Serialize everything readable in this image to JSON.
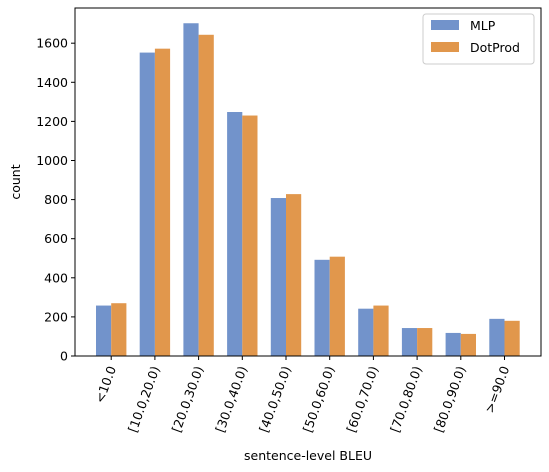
{
  "chart_data": {
    "type": "bar",
    "title": "",
    "xlabel": "sentence-level BLEU",
    "ylabel": "count",
    "categories": [
      "<10.0",
      "[10.0,20.0)",
      "[20.0,30.0)",
      "[30.0,40.0)",
      "[40.0,50.0)",
      "[50.0,60.0)",
      "[60.0,70.0)",
      "[70.0,80.0)",
      "[80.0,90.0)",
      ">=90.0"
    ],
    "series": [
      {
        "name": "MLP",
        "color": "#7293cb",
        "values": [
          258,
          1552,
          1702,
          1248,
          808,
          492,
          242,
          143,
          118,
          190
        ]
      },
      {
        "name": "DotProd",
        "color": "#e1974c",
        "values": [
          270,
          1572,
          1643,
          1230,
          828,
          508,
          258,
          143,
          113,
          180
        ]
      }
    ],
    "ylim": [
      0,
      1780
    ],
    "yticks": [
      0,
      200,
      400,
      600,
      800,
      1000,
      1200,
      1400,
      1600
    ],
    "grid": false,
    "legend": "top-right"
  }
}
